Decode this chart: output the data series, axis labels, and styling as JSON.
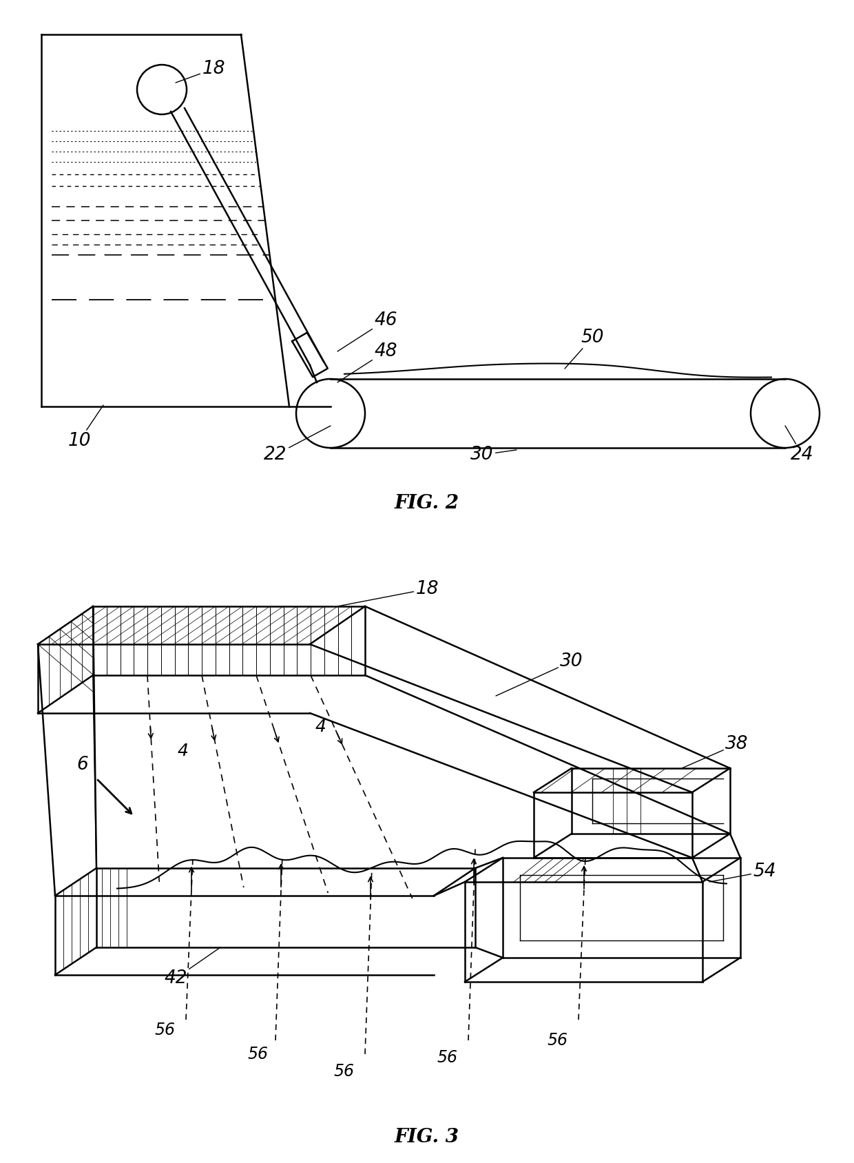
{
  "fig_width": 12.4,
  "fig_height": 16.88,
  "bg_color": "#ffffff",
  "line_color": "#000000",
  "fig2_label": "FIG. 2",
  "fig3_label": "FIG. 3"
}
